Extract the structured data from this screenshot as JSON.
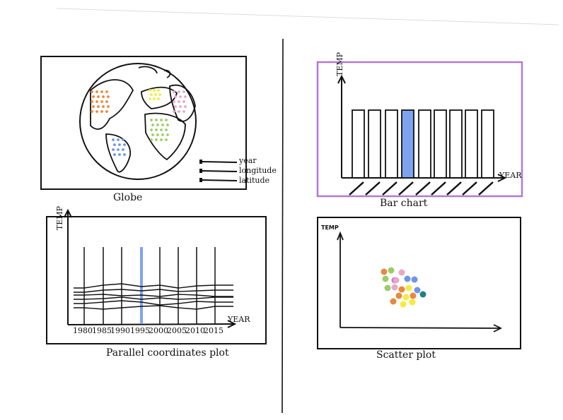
{
  "panels": {
    "globe": {
      "caption": "Globe",
      "legend": [
        "year",
        "longitude",
        "latitude"
      ]
    },
    "bar": {
      "caption": "Bar chart",
      "y_axis": "TEMP",
      "x_axis": "YEAR"
    },
    "parallel": {
      "caption": "Parallel coordinates plot",
      "y_axis": "TEMP",
      "x_axis": "YEAR",
      "ticks": [
        "1980",
        "1985",
        "1990",
        "1995",
        "2000",
        "2005",
        "2010",
        "2015"
      ]
    },
    "scatter": {
      "caption": "Scatter plot",
      "y_axis": "TEMP"
    }
  },
  "colors": {
    "highlight": "#7ea3ee",
    "orange": "#e8893c",
    "pink": "#e7a9c8",
    "yellow": "#f3ec3f",
    "green": "#9ccd66",
    "blue": "#6e95e8",
    "teal": "#1f7f86",
    "purple": "#b07ad4"
  }
}
